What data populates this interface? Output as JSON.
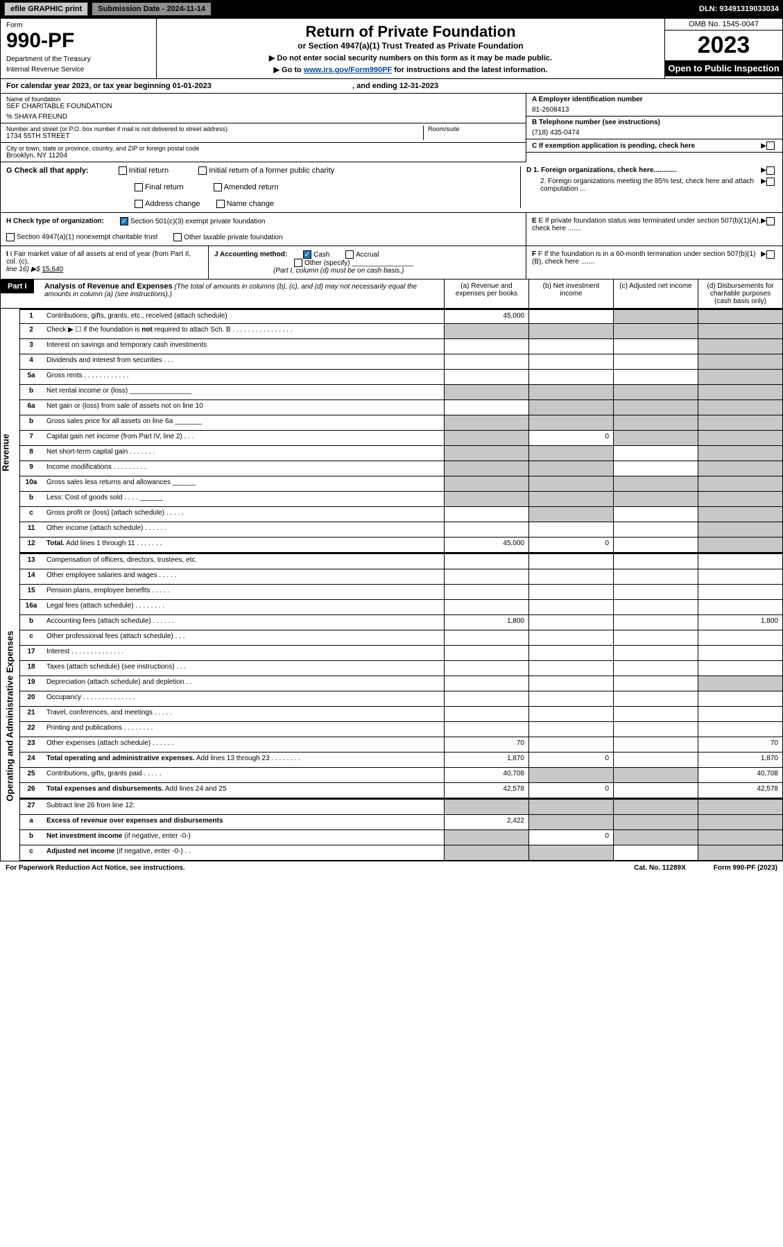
{
  "topbar": {
    "efile": "efile GRAPHIC print",
    "submission": "Submission Date - 2024-11-14",
    "dln": "DLN: 93491319033034"
  },
  "header": {
    "form_label": "Form",
    "form_number": "990-PF",
    "dept": "Department of the Treasury",
    "irs": "Internal Revenue Service",
    "title": "Return of Private Foundation",
    "subtitle": "or Section 4947(a)(1) Trust Treated as Private Foundation",
    "note1": "▶ Do not enter social security numbers on this form as it may be made public.",
    "note2_pre": "▶ Go to ",
    "note2_link": "www.irs.gov/Form990PF",
    "note2_post": " for instructions and the latest information.",
    "omb": "OMB No. 1545-0047",
    "tax_year": "2023",
    "open_public": "Open to Public Inspection"
  },
  "cal_year": {
    "text_pre": "For calendar year 2023, or tax year beginning ",
    "begin": "01-01-2023",
    "text_mid": " , and ending ",
    "end": "12-31-2023"
  },
  "info": {
    "name_label": "Name of foundation",
    "name": "SEF CHARITABLE FOUNDATION",
    "care_of": "% SHAYA FREUND",
    "street_label": "Number and street (or P.O. box number if mail is not delivered to street address)",
    "street": "1734 55TH STREET",
    "room_label": "Room/suite",
    "room": "",
    "city_label": "City or town, state or province, country, and ZIP or foreign postal code",
    "city": "Brooklyn, NY  11204",
    "ein_label": "A Employer identification number",
    "ein": "81-2608413",
    "phone_label": "B Telephone number (see instructions)",
    "phone": "(718) 435-0474",
    "c_label": "C If exemption application is pending, check here",
    "d1": "D 1. Foreign organizations, check here............",
    "d2": "2. Foreign organizations meeting the 85% test, check here and attach computation ...",
    "e_label": "E If private foundation status was terminated under section 507(b)(1)(A), check here .......",
    "f_label": "F If the foundation is in a 60-month termination under section 507(b)(1)(B), check here ......."
  },
  "g": {
    "label": "G Check all that apply:",
    "opt1": "Initial return",
    "opt2": "Initial return of a former public charity",
    "opt3": "Final return",
    "opt4": "Amended return",
    "opt5": "Address change",
    "opt6": "Name change"
  },
  "h": {
    "label": "H Check type of organization:",
    "opt1": "Section 501(c)(3) exempt private foundation",
    "opt2": "Section 4947(a)(1) nonexempt charitable trust",
    "opt3": "Other taxable private foundation"
  },
  "i": {
    "label": "I Fair market value of all assets at end of year (from Part II, col. (c),",
    "line16": "line 16) ▶$ ",
    "value": "15,640"
  },
  "j": {
    "label": "J Accounting method:",
    "cash": "Cash",
    "accrual": "Accrual",
    "other": "Other (specify)",
    "note": "(Part I, column (d) must be on cash basis.)"
  },
  "part1": {
    "label": "Part I",
    "title": "Analysis of Revenue and Expenses",
    "sub": " (The total of amounts in columns (b), (c), and (d) may not necessarily equal the amounts in column (a) (see instructions).)",
    "col_a": "(a) Revenue and expenses per books",
    "col_b": "(b) Net investment income",
    "col_c": "(c) Adjusted net income",
    "col_d": "(d) Disbursements for charitable purposes (cash basis only)"
  },
  "side_labels": {
    "revenue": "Revenue",
    "expenses": "Operating and Administrative Expenses"
  },
  "rows": [
    {
      "n": "1",
      "desc": "Contributions, gifts, grants, etc., received (attach schedule)",
      "a": "45,000",
      "b": "",
      "c": "shaded",
      "d": "shaded"
    },
    {
      "n": "2",
      "desc": "Check ▶ ☐ if the foundation is <b>not</b> required to attach Sch. B  .  .  .  .  .  .  .  .  .  .  .  .  .  .  .  .",
      "a": "shaded",
      "b": "shaded",
      "c": "shaded",
      "d": "shaded"
    },
    {
      "n": "3",
      "desc": "Interest on savings and temporary cash investments",
      "a": "",
      "b": "",
      "c": "",
      "d": "shaded"
    },
    {
      "n": "4",
      "desc": "Dividends and interest from securities  .  .  .",
      "a": "",
      "b": "",
      "c": "",
      "d": "shaded"
    },
    {
      "n": "5a",
      "desc": "Gross rents  .  .  .  .  .  .  .  .  .  .  .  .",
      "a": "",
      "b": "",
      "c": "",
      "d": "shaded"
    },
    {
      "n": "b",
      "desc": "Net rental income or (loss) ________________",
      "a": "shaded",
      "b": "shaded",
      "c": "shaded",
      "d": "shaded"
    },
    {
      "n": "6a",
      "desc": "Net gain or (loss) from sale of assets not on line 10",
      "a": "",
      "b": "shaded",
      "c": "shaded",
      "d": "shaded"
    },
    {
      "n": "b",
      "desc": "Gross sales price for all assets on line 6a _______",
      "a": "shaded",
      "b": "shaded",
      "c": "shaded",
      "d": "shaded"
    },
    {
      "n": "7",
      "desc": "Capital gain net income (from Part IV, line 2)  .  .  .",
      "a": "shaded",
      "b": "0",
      "c": "shaded",
      "d": "shaded"
    },
    {
      "n": "8",
      "desc": "Net short-term capital gain  .  .  .  .  .  .  .",
      "a": "shaded",
      "b": "shaded",
      "c": "",
      "d": "shaded"
    },
    {
      "n": "9",
      "desc": "Income modifications  .  .  .  .  .  .  .  .  .",
      "a": "shaded",
      "b": "shaded",
      "c": "",
      "d": "shaded"
    },
    {
      "n": "10a",
      "desc": "Gross sales less returns and allowances ______",
      "a": "shaded",
      "b": "shaded",
      "c": "shaded",
      "d": "shaded"
    },
    {
      "n": "b",
      "desc": "Less: Cost of goods sold  .  .  .  .  ______",
      "a": "shaded",
      "b": "shaded",
      "c": "shaded",
      "d": "shaded"
    },
    {
      "n": "c",
      "desc": "Gross profit or (loss) (attach schedule)  .  .  .  .  .",
      "a": "",
      "b": "shaded",
      "c": "",
      "d": "shaded"
    },
    {
      "n": "11",
      "desc": "Other income (attach schedule)  .  .  .  .  .  .",
      "a": "",
      "b": "",
      "c": "",
      "d": "shaded"
    },
    {
      "n": "12",
      "desc": "<b>Total.</b> Add lines 1 through 11  .  .  .  .  .  .  .",
      "a": "45,000",
      "b": "0",
      "c": "",
      "d": "shaded"
    }
  ],
  "exp_rows": [
    {
      "n": "13",
      "desc": "Compensation of officers, directors, trustees, etc.",
      "a": "",
      "b": "",
      "c": "",
      "d": ""
    },
    {
      "n": "14",
      "desc": "Other employee salaries and wages  .  .  .  .  .",
      "a": "",
      "b": "",
      "c": "",
      "d": ""
    },
    {
      "n": "15",
      "desc": "Pension plans, employee benefits  .  .  .  .  .",
      "a": "",
      "b": "",
      "c": "",
      "d": ""
    },
    {
      "n": "16a",
      "desc": "Legal fees (attach schedule)  .  .  .  .  .  .  .  .",
      "a": "",
      "b": "",
      "c": "",
      "d": ""
    },
    {
      "n": "b",
      "desc": "Accounting fees (attach schedule)  .  .  .  .  .  .",
      "a": "1,800",
      "b": "",
      "c": "",
      "d": "1,800"
    },
    {
      "n": "c",
      "desc": "Other professional fees (attach schedule)  .  .  .",
      "a": "",
      "b": "",
      "c": "",
      "d": ""
    },
    {
      "n": "17",
      "desc": "Interest  .  .  .  .  .  .  .  .  .  .  .  .  .  .",
      "a": "",
      "b": "",
      "c": "",
      "d": ""
    },
    {
      "n": "18",
      "desc": "Taxes (attach schedule) (see instructions)  .  .  .",
      "a": "",
      "b": "",
      "c": "",
      "d": ""
    },
    {
      "n": "19",
      "desc": "Depreciation (attach schedule) and depletion  .  .",
      "a": "",
      "b": "",
      "c": "",
      "d": "shaded"
    },
    {
      "n": "20",
      "desc": "Occupancy  .  .  .  .  .  .  .  .  .  .  .  .  .  .",
      "a": "",
      "b": "",
      "c": "",
      "d": ""
    },
    {
      "n": "21",
      "desc": "Travel, conferences, and meetings  .  .  .  .  .",
      "a": "",
      "b": "",
      "c": "",
      "d": ""
    },
    {
      "n": "22",
      "desc": "Printing and publications  .  .  .  .  .  .  .  .",
      "a": "",
      "b": "",
      "c": "",
      "d": ""
    },
    {
      "n": "23",
      "desc": "Other expenses (attach schedule)  .  .  .  .  .  .",
      "a": "70",
      "b": "",
      "c": "",
      "d": "70"
    },
    {
      "n": "24",
      "desc": "<b>Total operating and administrative expenses.</b> Add lines 13 through 23  .  .  .  .  .  .  .  .",
      "a": "1,870",
      "b": "0",
      "c": "",
      "d": "1,870"
    },
    {
      "n": "25",
      "desc": "Contributions, gifts, grants paid  .  .  .  .  .",
      "a": "40,708",
      "b": "shaded",
      "c": "shaded",
      "d": "40,708"
    },
    {
      "n": "26",
      "desc": "<b>Total expenses and disbursements.</b> Add lines 24 and 25",
      "a": "42,578",
      "b": "0",
      "c": "",
      "d": "42,578"
    }
  ],
  "final_rows": [
    {
      "n": "27",
      "desc": "Subtract line 26 from line 12:",
      "a": "shaded",
      "b": "shaded",
      "c": "shaded",
      "d": "shaded"
    },
    {
      "n": "a",
      "desc": "<b>Excess of revenue over expenses and disbursements</b>",
      "a": "2,422",
      "b": "shaded",
      "c": "shaded",
      "d": "shaded"
    },
    {
      "n": "b",
      "desc": "<b>Net investment income</b> (if negative, enter -0-)",
      "a": "shaded",
      "b": "0",
      "c": "shaded",
      "d": "shaded"
    },
    {
      "n": "c",
      "desc": "<b>Adjusted net income</b> (if negative, enter -0-)  .  .",
      "a": "shaded",
      "b": "shaded",
      "c": "",
      "d": "shaded"
    }
  ],
  "footer": {
    "left": "For Paperwork Reduction Act Notice, see instructions.",
    "mid": "Cat. No. 11289X",
    "right": "Form 990-PF (2023)"
  }
}
